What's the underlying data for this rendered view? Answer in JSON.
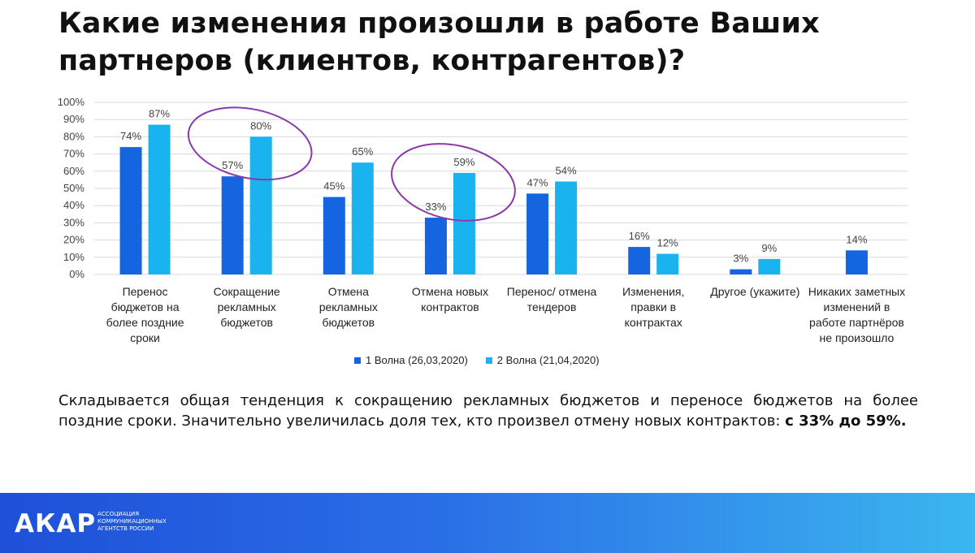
{
  "slide": {
    "title": "Какие изменения произошли в работе Ваших партнеров (клиентов, контрагентов)?",
    "summary_text": "Складывается общая тенденция к сокращению рекламных бюджетов и переносе бюджетов на более поздние сроки. Значительно увеличилась доля тех, кто  произвел отмену новых контрактов: ",
    "summary_bold": "с 33% до 59%."
  },
  "chart_data": {
    "type": "bar",
    "categories": [
      "Перенос бюджетов на более поздние сроки",
      "Сокращение рекламных бюджетов",
      "Отмена рекламных бюджетов",
      "Отмена новых контрактов",
      "Перенос/ отмена тендеров",
      "Изменения, правки в контрактах",
      "Другое (укажите)",
      "Никаких заметных изменений в работе партнёров не произошло"
    ],
    "series": [
      {
        "name": "1 Волна (26,03,2020)",
        "values": [
          74,
          57,
          45,
          33,
          47,
          16,
          3,
          14
        ],
        "color": "#1565e0"
      },
      {
        "name": "2 Волна (21,04,2020)",
        "values": [
          87,
          80,
          65,
          59,
          54,
          12,
          9,
          null
        ],
        "color": "#19b4ef"
      }
    ],
    "data_labels": [
      [
        "74%",
        "57%",
        "45%",
        "33%",
        "47%",
        "16%",
        "3%",
        "14%"
      ],
      [
        "87%",
        "80%",
        "65%",
        "59%",
        "54%",
        "12%",
        "9%",
        ""
      ]
    ],
    "y_ticks": [
      "0%",
      "10%",
      "20%",
      "30%",
      "40%",
      "50%",
      "60%",
      "70%",
      "80%",
      "90%",
      "100%"
    ],
    "ylim": [
      0,
      100
    ],
    "grid": true,
    "legend_position": "bottom",
    "highlighted_categories": [
      1,
      3
    ],
    "highlight_color": "#8a3aa8"
  },
  "footer": {
    "logo": "АКАР",
    "subtitle_lines": [
      "Ассоциация",
      "коммуникационных",
      "агентств России"
    ],
    "background": "#1e50d8"
  }
}
